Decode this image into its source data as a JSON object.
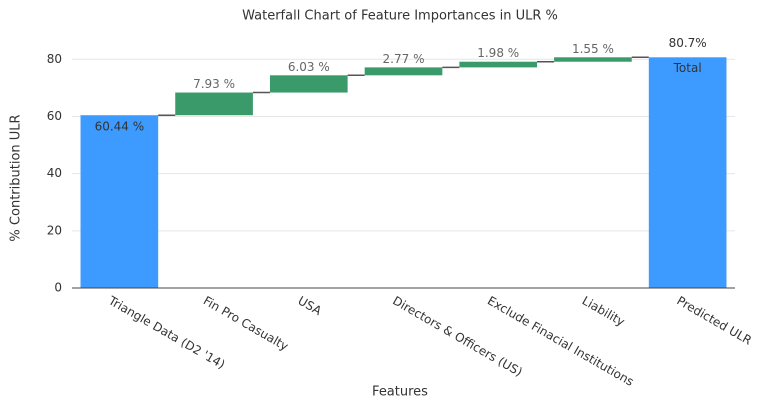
{
  "chart_data": {
    "type": "waterfall",
    "title": "Waterfall Chart of Feature Importances in ULR %",
    "x_label": "Features",
    "y_label": "% Contribution ULR",
    "categories": [
      "Triangle Data (D2 '14)",
      "Fin Pro Casualty",
      "USA",
      "Directors & Officers (US)",
      "Exclude Finacial Institutions",
      "Liability",
      "Predicted ULR"
    ],
    "measure": [
      "absolute",
      "relative",
      "relative",
      "relative",
      "relative",
      "relative",
      "total"
    ],
    "values": [
      60.44,
      7.93,
      6.03,
      2.77,
      1.98,
      1.55,
      80.7
    ],
    "value_labels": [
      "60.44 %",
      "7.93 %",
      "6.03 %",
      "2.77 %",
      "1.98 %",
      "1.55 %",
      "80.7%"
    ],
    "total_label": "Total",
    "absolute_color": "#3d9bff",
    "increase_color": "#3a9a6a",
    "connector_color": "#555555",
    "ylim": [
      0,
      85
    ],
    "yticks": [
      0,
      20,
      40,
      60,
      80
    ],
    "grid": true
  }
}
